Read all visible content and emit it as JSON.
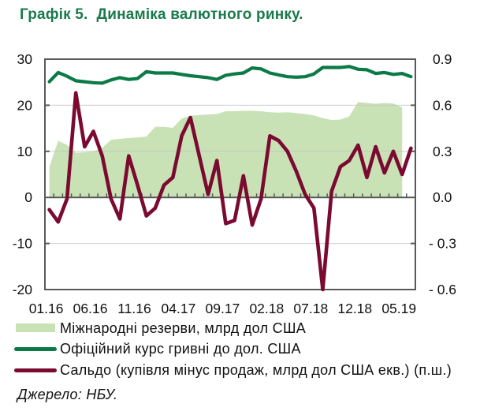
{
  "title": "Графік 5.  Динаміка валютного ринку.",
  "source": "Джерело: НБУ.",
  "colors": {
    "title": "#1a7a4c",
    "axis": "#595959",
    "grid": "#c4c4c4",
    "text": "#111111"
  },
  "chart_data": {
    "type": "line",
    "title": "Графік 5.  Динаміка валютного ринку.",
    "xlabel": "",
    "ylabel": "",
    "grid": true,
    "legend_position": "bottom",
    "categories": [
      "01.16",
      "02.16",
      "03.16",
      "04.16",
      "05.16",
      "06.16",
      "07.16",
      "08.16",
      "09.16",
      "10.16",
      "11.16",
      "12.16",
      "01.17",
      "02.17",
      "03.17",
      "04.17",
      "05.17",
      "06.17",
      "07.17",
      "08.17",
      "09.17",
      "10.17",
      "11.17",
      "12.17",
      "01.18",
      "02.18",
      "03.18",
      "04.18",
      "05.18",
      "06.18",
      "07.18",
      "08.18",
      "09.18",
      "10.18",
      "11.18",
      "12.18",
      "01.19",
      "02.19",
      "03.19",
      "04.19",
      "05.19",
      "06.19"
    ],
    "x_tick_labels": [
      "01.16",
      "06.16",
      "11.16",
      "04.17",
      "09.17",
      "02.18",
      "07.18",
      "12.18",
      "05.19"
    ],
    "left_axis": {
      "min": -20,
      "max": 30,
      "ticks": [
        30,
        20,
        10,
        0,
        -10,
        -20
      ],
      "tick_labels": [
        "30",
        "20",
        "10",
        "0",
        "-10",
        "-20"
      ]
    },
    "right_axis": {
      "min": -0.6,
      "max": 0.9,
      "ticks": [
        0.9,
        0.6,
        0.3,
        0.0,
        -0.3,
        -0.6
      ],
      "tick_labels": [
        "0.9",
        "0.6",
        "0.3",
        "0.0",
        "- 0.3",
        "- 0.6"
      ]
    },
    "series": [
      {
        "name": "Міжнародні резерви, млрд дол США",
        "type": "area",
        "axis": "left",
        "color": "#c9e2b5",
        "values": [
          6.6,
          12.3,
          11.4,
          9.7,
          9.8,
          10.0,
          10.8,
          12.5,
          12.7,
          12.9,
          13.0,
          13.2,
          15.3,
          15.3,
          15.1,
          17.1,
          17.7,
          17.9,
          18.0,
          18.1,
          18.7,
          18.7,
          18.8,
          18.8,
          18.7,
          18.5,
          18.4,
          18.5,
          18.3,
          18.1,
          17.8,
          17.2,
          16.8,
          16.9,
          17.6,
          20.7,
          20.5,
          20.3,
          20.5,
          20.4,
          19.5,
          null
        ]
      },
      {
        "name": "Офіційний курс гривні до дол. США",
        "type": "line",
        "axis": "left",
        "color": "#0b7a46",
        "values": [
          25.1,
          27.1,
          26.3,
          25.3,
          25.1,
          24.9,
          24.8,
          25.5,
          26.0,
          25.6,
          25.8,
          27.3,
          27.0,
          27.0,
          27.0,
          26.7,
          26.4,
          26.2,
          26.0,
          25.6,
          26.5,
          26.8,
          27.0,
          28.1,
          27.9,
          27.0,
          26.6,
          26.2,
          26.1,
          26.2,
          26.8,
          28.2,
          28.2,
          28.2,
          28.4,
          27.8,
          27.7,
          26.9,
          27.1,
          26.7,
          26.9,
          26.2
        ]
      },
      {
        "name": "Сальдо (купівля мінус продаж, млрд дол США екв.) (п.ш.)",
        "type": "line",
        "axis": "right",
        "color": "#7a0a31",
        "values": [
          -0.08,
          -0.16,
          -0.01,
          0.68,
          0.33,
          0.43,
          0.27,
          -0.01,
          -0.14,
          0.27,
          0.08,
          -0.12,
          -0.07,
          0.08,
          0.13,
          0.4,
          0.52,
          0.27,
          0.02,
          0.24,
          -0.17,
          -0.15,
          0.14,
          -0.18,
          -0.01,
          0.4,
          0.37,
          0.3,
          0.17,
          0.02,
          -0.07,
          -0.6,
          0.04,
          0.2,
          0.24,
          0.34,
          0.13,
          0.33,
          0.16,
          0.3,
          0.15,
          0.32
        ]
      }
    ]
  }
}
